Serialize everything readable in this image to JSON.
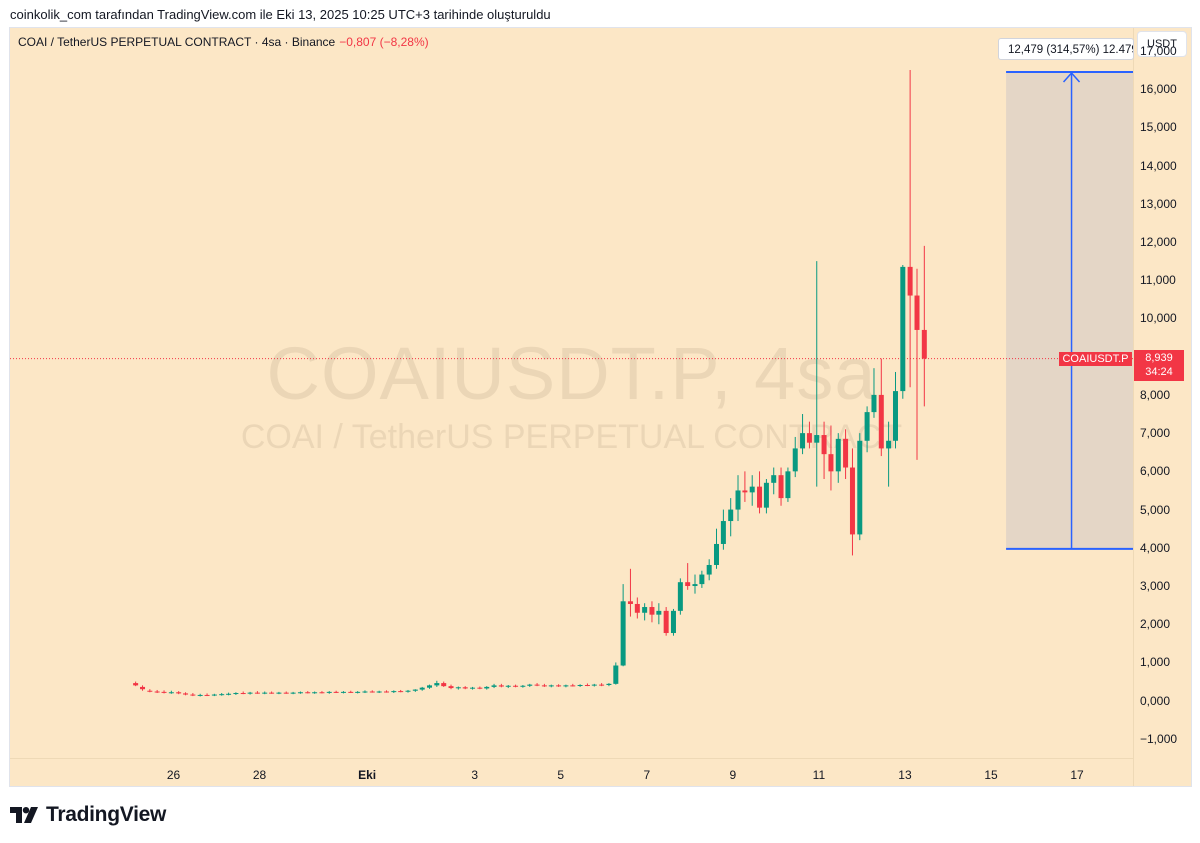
{
  "caption": "coinkolik_com tarafından TradingView.com ile Eki 13, 2025 10:25 UTC+3 tarihinde oluşturuldu",
  "header": {
    "symbol_desc": "COAI / TetherUS PERPETUAL CONTRACT · 4sa · Binance",
    "change": "−0,807 (−8,28%)",
    "currency": "USDT"
  },
  "watermark": {
    "symbol": "COAIUSDT.P, 4sa",
    "description": "COAI / TetherUS PERPETUAL CONTRACT"
  },
  "last_price": {
    "symbol": "COAIUSDT.P",
    "price": "8,939",
    "countdown": "34:24"
  },
  "measure": {
    "label": "12,479 (314,57%) 12.479",
    "from": 3.97,
    "to": 16.449
  },
  "colors": {
    "up": "#089981",
    "down": "#f23645",
    "measure": "#2962ff",
    "background": "#fce7c6"
  },
  "footer": {
    "brand": "TradingView",
    "logo_icon": "tradingview-logo-icon"
  },
  "chart_data": {
    "type": "candlestick",
    "ylim": [
      -1.5,
      17.6
    ],
    "y_ticks": [
      "17,000",
      "16,000",
      "15,000",
      "14,000",
      "13,000",
      "12,000",
      "11,000",
      "10,000",
      "9,000",
      "8,000",
      "7,000",
      "6,000",
      "5,000",
      "4,000",
      "3,000",
      "2,000",
      "1,000",
      "0,000",
      "−1,000"
    ],
    "y_tick_values": [
      17,
      16,
      15,
      14,
      13,
      12,
      11,
      10,
      9,
      8,
      7,
      6,
      5,
      4,
      3,
      2,
      1,
      0,
      -1
    ],
    "x_ticks": [
      {
        "label": "26",
        "day": 26
      },
      {
        "label": "28",
        "day": 28
      },
      {
        "label": "Eki",
        "day": 30.5,
        "bold": true
      },
      {
        "label": "3",
        "day": 33
      },
      {
        "label": "5",
        "day": 35
      },
      {
        "label": "7",
        "day": 37
      },
      {
        "label": "9",
        "day": 39
      },
      {
        "label": "11",
        "day": 41
      },
      {
        "label": "13",
        "day": 43
      },
      {
        "label": "15",
        "day": 45
      },
      {
        "label": "17",
        "day": 47
      }
    ],
    "x_domain": [
      22.2,
      48.3
    ],
    "candles_note": "x = day offset from Sep 1 (Eki 1 = day 31); values in USDT",
    "candles": [
      {
        "x": 25.12,
        "o": 0.46,
        "h": 0.5,
        "l": 0.38,
        "c": 0.4
      },
      {
        "x": 25.28,
        "o": 0.36,
        "h": 0.4,
        "l": 0.26,
        "c": 0.3
      },
      {
        "x": 25.45,
        "o": 0.26,
        "h": 0.3,
        "l": 0.22,
        "c": 0.24
      },
      {
        "x": 25.62,
        "o": 0.24,
        "h": 0.28,
        "l": 0.2,
        "c": 0.23
      },
      {
        "x": 25.78,
        "o": 0.23,
        "h": 0.27,
        "l": 0.19,
        "c": 0.21
      },
      {
        "x": 25.95,
        "o": 0.21,
        "h": 0.26,
        "l": 0.18,
        "c": 0.22
      },
      {
        "x": 26.12,
        "o": 0.22,
        "h": 0.25,
        "l": 0.17,
        "c": 0.19
      },
      {
        "x": 26.28,
        "o": 0.19,
        "h": 0.22,
        "l": 0.14,
        "c": 0.16
      },
      {
        "x": 26.45,
        "o": 0.16,
        "h": 0.2,
        "l": 0.12,
        "c": 0.14
      },
      {
        "x": 26.62,
        "o": 0.14,
        "h": 0.18,
        "l": 0.11,
        "c": 0.15
      },
      {
        "x": 26.78,
        "o": 0.15,
        "h": 0.19,
        "l": 0.12,
        "c": 0.14
      },
      {
        "x": 26.95,
        "o": 0.14,
        "h": 0.18,
        "l": 0.12,
        "c": 0.16
      },
      {
        "x": 27.12,
        "o": 0.16,
        "h": 0.2,
        "l": 0.13,
        "c": 0.17
      },
      {
        "x": 27.28,
        "o": 0.17,
        "h": 0.21,
        "l": 0.14,
        "c": 0.18
      },
      {
        "x": 27.45,
        "o": 0.18,
        "h": 0.22,
        "l": 0.15,
        "c": 0.2
      },
      {
        "x": 27.62,
        "o": 0.2,
        "h": 0.24,
        "l": 0.17,
        "c": 0.19
      },
      {
        "x": 27.78,
        "o": 0.19,
        "h": 0.23,
        "l": 0.16,
        "c": 0.21
      },
      {
        "x": 27.95,
        "o": 0.21,
        "h": 0.25,
        "l": 0.18,
        "c": 0.2
      },
      {
        "x": 28.12,
        "o": 0.2,
        "h": 0.24,
        "l": 0.17,
        "c": 0.21
      },
      {
        "x": 28.28,
        "o": 0.21,
        "h": 0.24,
        "l": 0.18,
        "c": 0.2
      },
      {
        "x": 28.45,
        "o": 0.2,
        "h": 0.23,
        "l": 0.17,
        "c": 0.21
      },
      {
        "x": 28.62,
        "o": 0.21,
        "h": 0.24,
        "l": 0.18,
        "c": 0.2
      },
      {
        "x": 28.78,
        "o": 0.2,
        "h": 0.23,
        "l": 0.17,
        "c": 0.21
      },
      {
        "x": 28.95,
        "o": 0.21,
        "h": 0.24,
        "l": 0.18,
        "c": 0.22
      },
      {
        "x": 29.12,
        "o": 0.22,
        "h": 0.25,
        "l": 0.19,
        "c": 0.21
      },
      {
        "x": 29.28,
        "o": 0.21,
        "h": 0.24,
        "l": 0.18,
        "c": 0.22
      },
      {
        "x": 29.45,
        "o": 0.22,
        "h": 0.25,
        "l": 0.19,
        "c": 0.21
      },
      {
        "x": 29.62,
        "o": 0.21,
        "h": 0.25,
        "l": 0.18,
        "c": 0.23
      },
      {
        "x": 29.78,
        "o": 0.23,
        "h": 0.26,
        "l": 0.2,
        "c": 0.22
      },
      {
        "x": 29.95,
        "o": 0.22,
        "h": 0.25,
        "l": 0.19,
        "c": 0.23
      },
      {
        "x": 30.12,
        "o": 0.23,
        "h": 0.26,
        "l": 0.2,
        "c": 0.22
      },
      {
        "x": 30.28,
        "o": 0.22,
        "h": 0.25,
        "l": 0.19,
        "c": 0.23
      },
      {
        "x": 30.45,
        "o": 0.23,
        "h": 0.27,
        "l": 0.2,
        "c": 0.24
      },
      {
        "x": 30.62,
        "o": 0.24,
        "h": 0.27,
        "l": 0.21,
        "c": 0.23
      },
      {
        "x": 30.78,
        "o": 0.23,
        "h": 0.26,
        "l": 0.2,
        "c": 0.24
      },
      {
        "x": 30.95,
        "o": 0.24,
        "h": 0.27,
        "l": 0.21,
        "c": 0.23
      },
      {
        "x": 31.12,
        "o": 0.23,
        "h": 0.27,
        "l": 0.2,
        "c": 0.25
      },
      {
        "x": 31.28,
        "o": 0.25,
        "h": 0.28,
        "l": 0.22,
        "c": 0.24
      },
      {
        "x": 31.45,
        "o": 0.24,
        "h": 0.28,
        "l": 0.21,
        "c": 0.26
      },
      {
        "x": 31.62,
        "o": 0.26,
        "h": 0.3,
        "l": 0.23,
        "c": 0.29
      },
      {
        "x": 31.78,
        "o": 0.29,
        "h": 0.36,
        "l": 0.26,
        "c": 0.34
      },
      {
        "x": 31.95,
        "o": 0.34,
        "h": 0.42,
        "l": 0.31,
        "c": 0.4
      },
      {
        "x": 32.12,
        "o": 0.4,
        "h": 0.52,
        "l": 0.36,
        "c": 0.46
      },
      {
        "x": 32.28,
        "o": 0.46,
        "h": 0.5,
        "l": 0.36,
        "c": 0.38
      },
      {
        "x": 32.45,
        "o": 0.38,
        "h": 0.42,
        "l": 0.3,
        "c": 0.33
      },
      {
        "x": 32.62,
        "o": 0.33,
        "h": 0.37,
        "l": 0.29,
        "c": 0.35
      },
      {
        "x": 32.78,
        "o": 0.35,
        "h": 0.38,
        "l": 0.3,
        "c": 0.32
      },
      {
        "x": 32.95,
        "o": 0.32,
        "h": 0.36,
        "l": 0.29,
        "c": 0.34
      },
      {
        "x": 33.12,
        "o": 0.34,
        "h": 0.37,
        "l": 0.3,
        "c": 0.32
      },
      {
        "x": 33.28,
        "o": 0.32,
        "h": 0.38,
        "l": 0.29,
        "c": 0.36
      },
      {
        "x": 33.45,
        "o": 0.36,
        "h": 0.44,
        "l": 0.33,
        "c": 0.4
      },
      {
        "x": 33.62,
        "o": 0.4,
        "h": 0.44,
        "l": 0.35,
        "c": 0.37
      },
      {
        "x": 33.78,
        "o": 0.37,
        "h": 0.41,
        "l": 0.33,
        "c": 0.39
      },
      {
        "x": 33.95,
        "o": 0.39,
        "h": 0.42,
        "l": 0.35,
        "c": 0.37
      },
      {
        "x": 34.12,
        "o": 0.37,
        "h": 0.41,
        "l": 0.34,
        "c": 0.39
      },
      {
        "x": 34.28,
        "o": 0.39,
        "h": 0.44,
        "l": 0.36,
        "c": 0.42
      },
      {
        "x": 34.45,
        "o": 0.42,
        "h": 0.46,
        "l": 0.38,
        "c": 0.4
      },
      {
        "x": 34.62,
        "o": 0.4,
        "h": 0.44,
        "l": 0.36,
        "c": 0.38
      },
      {
        "x": 34.78,
        "o": 0.38,
        "h": 0.42,
        "l": 0.35,
        "c": 0.4
      },
      {
        "x": 34.95,
        "o": 0.4,
        "h": 0.43,
        "l": 0.36,
        "c": 0.38
      },
      {
        "x": 35.12,
        "o": 0.38,
        "h": 0.42,
        "l": 0.35,
        "c": 0.4
      },
      {
        "x": 35.28,
        "o": 0.4,
        "h": 0.44,
        "l": 0.37,
        "c": 0.39
      },
      {
        "x": 35.45,
        "o": 0.39,
        "h": 0.43,
        "l": 0.36,
        "c": 0.41
      },
      {
        "x": 35.62,
        "o": 0.41,
        "h": 0.45,
        "l": 0.38,
        "c": 0.4
      },
      {
        "x": 35.78,
        "o": 0.4,
        "h": 0.44,
        "l": 0.37,
        "c": 0.42
      },
      {
        "x": 35.95,
        "o": 0.42,
        "h": 0.46,
        "l": 0.38,
        "c": 0.41
      },
      {
        "x": 36.12,
        "o": 0.41,
        "h": 0.46,
        "l": 0.38,
        "c": 0.44
      },
      {
        "x": 36.28,
        "o": 0.44,
        "h": 1.0,
        "l": 0.42,
        "c": 0.92
      },
      {
        "x": 36.45,
        "o": 0.92,
        "h": 3.05,
        "l": 0.9,
        "c": 2.6
      },
      {
        "x": 36.62,
        "o": 2.6,
        "h": 3.45,
        "l": 2.2,
        "c": 2.53
      },
      {
        "x": 36.78,
        "o": 2.53,
        "h": 2.7,
        "l": 2.15,
        "c": 2.3
      },
      {
        "x": 36.95,
        "o": 2.3,
        "h": 2.55,
        "l": 2.1,
        "c": 2.45
      },
      {
        "x": 37.12,
        "o": 2.45,
        "h": 2.6,
        "l": 2.05,
        "c": 2.25
      },
      {
        "x": 37.28,
        "o": 2.25,
        "h": 2.55,
        "l": 2.0,
        "c": 2.35
      },
      {
        "x": 37.45,
        "o": 2.35,
        "h": 2.45,
        "l": 1.7,
        "c": 1.77
      },
      {
        "x": 37.62,
        "o": 1.77,
        "h": 2.4,
        "l": 1.7,
        "c": 2.35
      },
      {
        "x": 37.78,
        "o": 2.35,
        "h": 3.2,
        "l": 2.25,
        "c": 3.1
      },
      {
        "x": 37.95,
        "o": 3.1,
        "h": 3.6,
        "l": 2.9,
        "c": 3.0
      },
      {
        "x": 38.12,
        "o": 3.0,
        "h": 3.3,
        "l": 2.8,
        "c": 3.05
      },
      {
        "x": 38.28,
        "o": 3.05,
        "h": 3.4,
        "l": 2.95,
        "c": 3.3
      },
      {
        "x": 38.45,
        "o": 3.3,
        "h": 3.7,
        "l": 3.15,
        "c": 3.55
      },
      {
        "x": 38.62,
        "o": 3.55,
        "h": 4.5,
        "l": 3.45,
        "c": 4.1
      },
      {
        "x": 38.78,
        "o": 4.1,
        "h": 5.0,
        "l": 3.95,
        "c": 4.7
      },
      {
        "x": 38.95,
        "o": 4.7,
        "h": 5.3,
        "l": 4.3,
        "c": 5.0
      },
      {
        "x": 39.12,
        "o": 5.0,
        "h": 5.9,
        "l": 4.7,
        "c": 5.5
      },
      {
        "x": 39.28,
        "o": 5.5,
        "h": 6.0,
        "l": 5.2,
        "c": 5.45
      },
      {
        "x": 39.45,
        "o": 5.45,
        "h": 5.9,
        "l": 5.1,
        "c": 5.6
      },
      {
        "x": 39.62,
        "o": 5.6,
        "h": 6.0,
        "l": 4.9,
        "c": 5.05
      },
      {
        "x": 39.78,
        "o": 5.05,
        "h": 5.8,
        "l": 4.9,
        "c": 5.7
      },
      {
        "x": 39.95,
        "o": 5.7,
        "h": 6.1,
        "l": 5.4,
        "c": 5.9
      },
      {
        "x": 40.12,
        "o": 5.9,
        "h": 6.1,
        "l": 5.1,
        "c": 5.3
      },
      {
        "x": 40.28,
        "o": 5.3,
        "h": 6.1,
        "l": 5.2,
        "c": 6.0
      },
      {
        "x": 40.45,
        "o": 6.0,
        "h": 6.9,
        "l": 5.85,
        "c": 6.6
      },
      {
        "x": 40.62,
        "o": 6.6,
        "h": 7.5,
        "l": 6.45,
        "c": 7.0
      },
      {
        "x": 40.78,
        "o": 7.0,
        "h": 7.3,
        "l": 6.6,
        "c": 6.75
      },
      {
        "x": 40.95,
        "o": 6.75,
        "h": 11.5,
        "l": 5.6,
        "c": 6.95
      },
      {
        "x": 41.12,
        "o": 6.95,
        "h": 7.3,
        "l": 5.8,
        "c": 6.45
      },
      {
        "x": 41.28,
        "o": 6.45,
        "h": 7.2,
        "l": 5.5,
        "c": 6.0
      },
      {
        "x": 41.45,
        "o": 6.0,
        "h": 7.0,
        "l": 5.7,
        "c": 6.85
      },
      {
        "x": 41.62,
        "o": 6.85,
        "h": 7.1,
        "l": 5.8,
        "c": 6.1
      },
      {
        "x": 41.78,
        "o": 6.1,
        "h": 6.6,
        "l": 3.8,
        "c": 4.35
      },
      {
        "x": 41.95,
        "o": 4.35,
        "h": 7.0,
        "l": 4.2,
        "c": 6.8
      },
      {
        "x": 42.12,
        "o": 6.8,
        "h": 7.7,
        "l": 6.5,
        "c": 7.55
      },
      {
        "x": 42.28,
        "o": 7.55,
        "h": 8.7,
        "l": 7.4,
        "c": 8.0
      },
      {
        "x": 42.45,
        "o": 8.0,
        "h": 8.95,
        "l": 6.4,
        "c": 6.6
      },
      {
        "x": 42.62,
        "o": 6.6,
        "h": 7.3,
        "l": 5.6,
        "c": 6.8
      },
      {
        "x": 42.78,
        "o": 6.8,
        "h": 8.6,
        "l": 6.6,
        "c": 8.1
      },
      {
        "x": 42.95,
        "o": 8.1,
        "h": 11.4,
        "l": 7.9,
        "c": 11.35
      },
      {
        "x": 43.12,
        "o": 11.35,
        "h": 16.5,
        "l": 8.2,
        "c": 10.6
      },
      {
        "x": 43.28,
        "o": 10.6,
        "h": 11.3,
        "l": 6.3,
        "c": 9.7
      },
      {
        "x": 43.45,
        "o": 9.7,
        "h": 11.9,
        "l": 7.7,
        "c": 8.95
      }
    ]
  }
}
